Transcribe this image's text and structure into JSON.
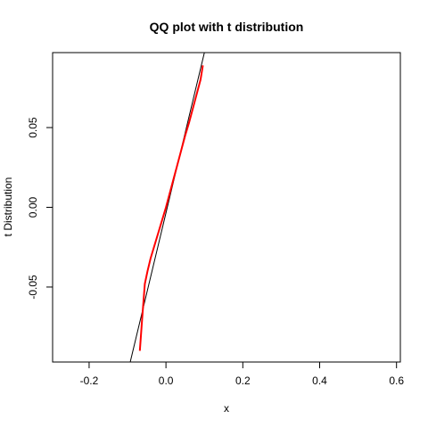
{
  "chart_data": {
    "type": "line",
    "title": "QQ plot with t distribution",
    "xlabel": "x",
    "ylabel": "t Distribution",
    "xlim": [
      -0.295,
      0.61
    ],
    "ylim": [
      -0.097,
      0.097
    ],
    "xticks": [
      -0.2,
      0.0,
      0.2,
      0.4,
      0.6
    ],
    "xtick_labels": [
      "-0.2",
      "0.0",
      "0.2",
      "0.4",
      "0.6"
    ],
    "yticks": [
      -0.05,
      0.0,
      0.05
    ],
    "ytick_labels": [
      "-0.05",
      "0.00",
      "0.05"
    ],
    "grid": false,
    "legend": "none",
    "series": [
      {
        "color": "#ff0000",
        "x": [
          -0.068,
          -0.062,
          -0.055,
          -0.048,
          -0.04,
          -0.03,
          -0.02,
          -0.01,
          0.0,
          0.01,
          0.02,
          0.03,
          0.04,
          0.05,
          0.06,
          0.07,
          0.08,
          0.09,
          0.096
        ],
        "y": [
          -0.09,
          -0.07,
          -0.048,
          -0.04,
          -0.032,
          -0.024,
          -0.016,
          -0.008,
          0.0,
          0.009,
          0.018,
          0.027,
          0.036,
          0.045,
          0.053,
          0.062,
          0.071,
          0.08,
          0.089
        ]
      }
    ],
    "reference_line": {
      "color": "#000000",
      "points": [
        [
          -0.093,
          -0.097
        ],
        [
          0.1,
          0.097
        ]
      ]
    }
  }
}
